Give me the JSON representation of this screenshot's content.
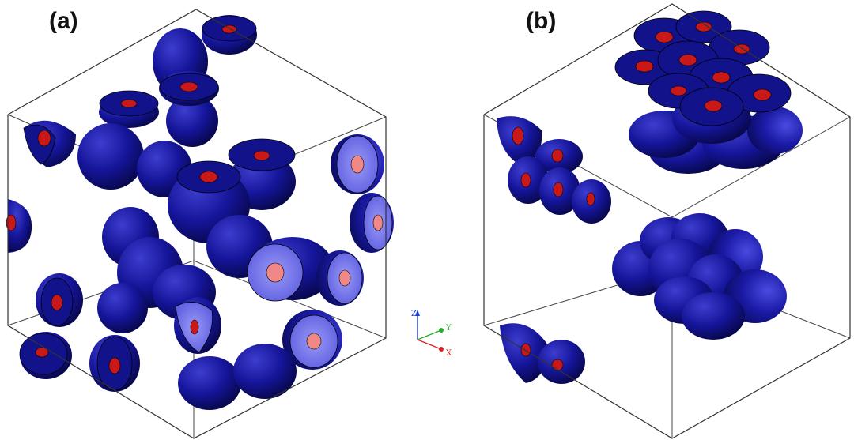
{
  "figure": {
    "panel_a": {
      "label": "(a)"
    },
    "panel_b": {
      "label": "(b)"
    },
    "axes": {
      "z": "Z",
      "y": "Y",
      "x": "X"
    }
  },
  "colors": {
    "particle_shell": "#14148c",
    "particle_highlight": "#4444d6",
    "particle_dark": "#06063f",
    "core": "#c81818",
    "cut_face_light": "#7878ee",
    "core_light": "#f08888",
    "box_edge": "#333333",
    "axis_z": "#1a3ad8",
    "axis_y": "#22b022",
    "axis_x": "#d82020"
  },
  "icons": [
    "coordinate-axes-icon"
  ]
}
